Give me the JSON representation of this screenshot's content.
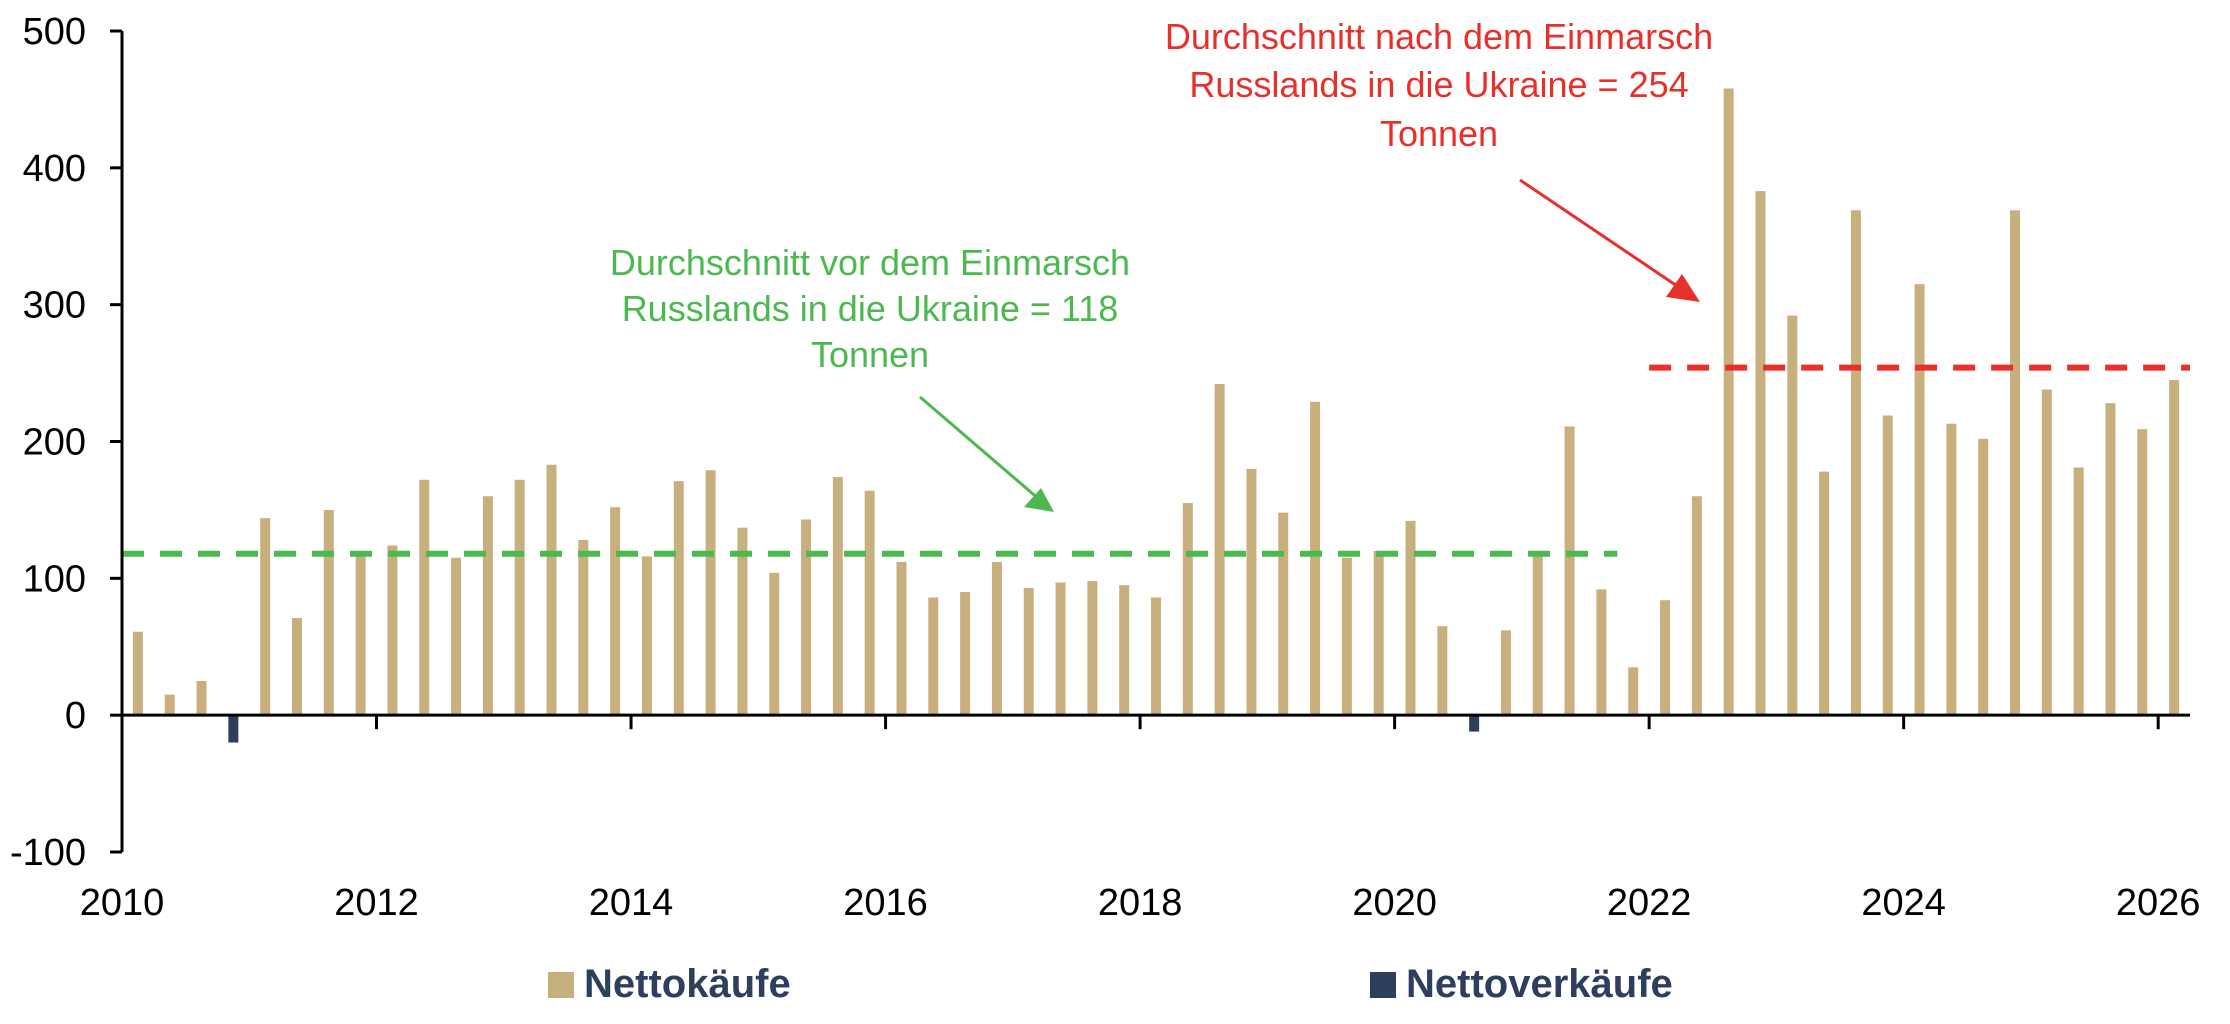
{
  "chart_data": {
    "type": "bar",
    "colors": {
      "net_purchases": "#c8b07e",
      "net_sales": "#2e3f5e",
      "pre_avg": "#4cb850",
      "post_avg": "#e8302a"
    },
    "ylim": [
      -100,
      500
    ],
    "yticks": [
      "500",
      "400",
      "300",
      "200",
      "100",
      "0",
      "-100"
    ],
    "xlim": [
      2010,
      2026.25
    ],
    "xticks": [
      "2010",
      "2012",
      "2014",
      "2016",
      "2018",
      "2020",
      "2022",
      "2024",
      "2026"
    ],
    "series": [
      {
        "name": "Nettokäufe",
        "values": [
          61,
          15,
          25,
          0,
          144,
          71,
          150,
          119,
          124,
          172,
          115,
          160,
          172,
          183,
          128,
          152,
          116,
          171,
          179,
          137,
          104,
          143,
          174,
          164,
          112,
          86,
          90,
          112,
          93,
          97,
          98,
          95,
          86,
          155,
          242,
          180,
          148,
          229,
          115,
          120,
          142,
          65,
          0,
          62,
          118,
          211,
          92,
          35,
          84,
          160,
          458,
          383,
          292,
          178,
          369,
          219,
          315,
          213,
          202,
          369,
          238,
          181,
          228,
          209,
          245
        ]
      },
      {
        "name": "Nettoverkäufe",
        "values": [
          0,
          0,
          0,
          -20,
          0,
          0,
          0,
          0,
          0,
          0,
          0,
          0,
          0,
          0,
          0,
          0,
          0,
          0,
          0,
          0,
          0,
          0,
          0,
          0,
          0,
          0,
          0,
          0,
          0,
          0,
          0,
          0,
          0,
          0,
          0,
          0,
          0,
          0,
          0,
          0,
          0,
          0,
          -12,
          0,
          0,
          0,
          0,
          0,
          0,
          0,
          0,
          0,
          0,
          0,
          0,
          0,
          0,
          0,
          0,
          0,
          0,
          0,
          0,
          0,
          0
        ]
      }
    ],
    "averages": [
      {
        "value": 118,
        "from": 2010,
        "to": 2021.75
      },
      {
        "value": 254,
        "from": 2022.0,
        "to": 2026.25
      }
    ],
    "annotations": {
      "pre": [
        "Durchschnitt vor dem Einmarsch",
        "Russlands in die Ukraine = 118",
        "Tonnen"
      ],
      "post": [
        "Durchschnitt nach dem Einmarsch",
        "Russlands in die Ukraine = 254",
        "Tonnen"
      ]
    },
    "legend": [
      "Nettokäufe",
      "Nettoverkäufe"
    ]
  }
}
